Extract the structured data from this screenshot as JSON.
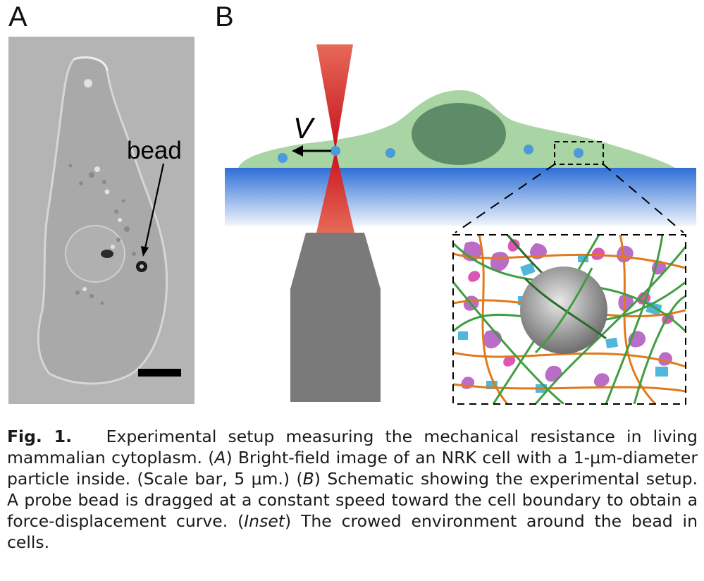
{
  "panel_a": {
    "letter": "A",
    "label": "bead"
  },
  "panel_b": {
    "letter": "B",
    "velocity_label": "V"
  },
  "caption": {
    "fig_label": "Fig. 1.",
    "s1": "Experimental setup measuring the mechanical resistance in living mammalian cytoplasm. (",
    "a": "A",
    "s2": ") Bright-field image of an NRK cell with a 1-μm-diameter particle inside. (Scale bar, 5 μm.) (",
    "b": "B",
    "s3": ") Schematic showing the experimental setup. A probe bead is dragged at a constant speed toward the cell boundary to obtain a force-displacement curve. (",
    "inset": "Inset",
    "s4": ") The crowed environment around the bead in cells."
  },
  "colors": {
    "cell": "#a9d4a3",
    "nucleus": "#5e8c68",
    "bead": "#4b9ad9",
    "laser": "#d3202a",
    "objective": "#7a7a7a",
    "glass_top": "#2f6fd6",
    "glass_bottom": "#eef4fb"
  }
}
